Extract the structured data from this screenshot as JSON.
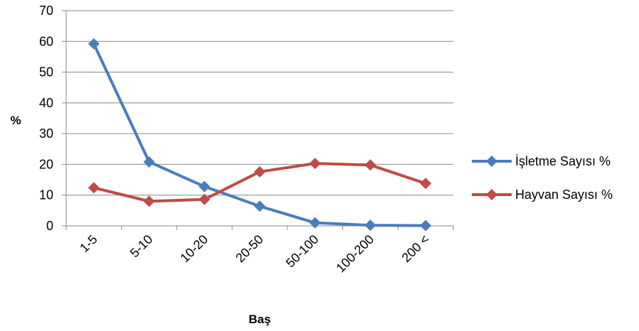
{
  "chart_data": {
    "type": "line",
    "categories": [
      "1-5",
      "5-10",
      "10-20",
      "20-50",
      "50-100",
      "100-200",
      "200 <"
    ],
    "series": [
      {
        "name": "İşletme Sayısı %",
        "color": "#4a7ebb",
        "values": [
          59.2,
          20.8,
          12.8,
          6.4,
          1.0,
          0.2,
          0.1
        ]
      },
      {
        "name": "Hayvan Sayısı %",
        "color": "#be4b48",
        "values": [
          12.4,
          8.0,
          8.6,
          17.6,
          20.3,
          19.8,
          13.8
        ]
      }
    ],
    "title": "",
    "xlabel": "Baş",
    "ylabel": "%",
    "ylim": [
      0,
      70
    ],
    "yticks": [
      0,
      10,
      20,
      30,
      40,
      50,
      60,
      70
    ],
    "grid": true,
    "legend_position": "right",
    "marker": "diamond"
  }
}
